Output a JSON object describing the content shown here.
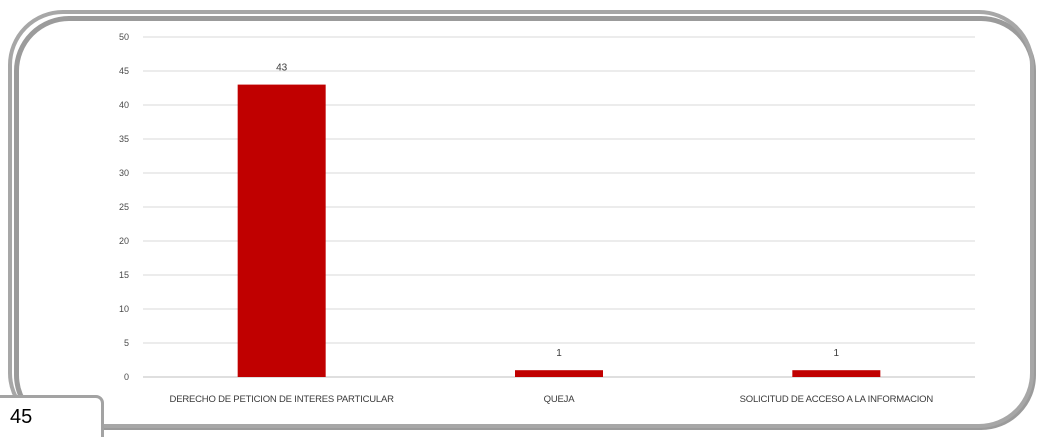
{
  "page": {
    "number": "45"
  },
  "chart_data": {
    "type": "bar",
    "categories": [
      "DERECHO DE PETICION DE INTERES PARTICULAR",
      "QUEJA",
      "SOLICITUD DE ACCESO A LA INFORMACION"
    ],
    "values": [
      43,
      1,
      1
    ],
    "data_labels": [
      "43",
      "1",
      "1"
    ],
    "ylim": [
      0,
      50
    ],
    "yticks": [
      0,
      5,
      10,
      15,
      20,
      25,
      30,
      35,
      40,
      45,
      50
    ],
    "grid": true,
    "legend": "none",
    "title": "",
    "xlabel": "",
    "ylabel": "",
    "colors": {
      "bar": "#c00000",
      "grid": "#d9d9d9",
      "axis": "#bfbfbf"
    }
  }
}
